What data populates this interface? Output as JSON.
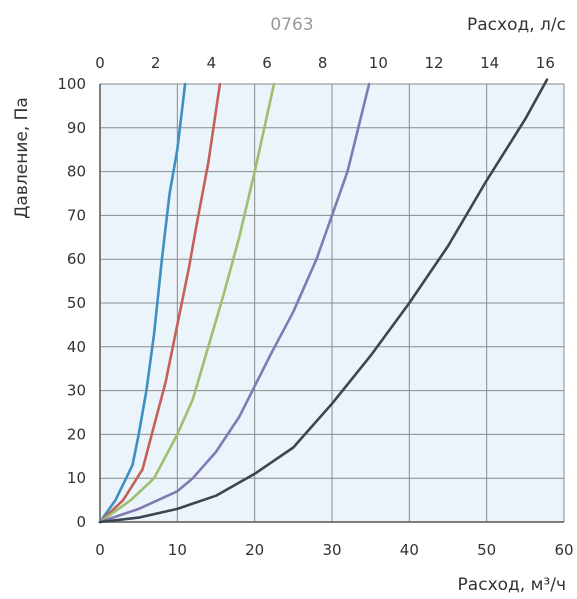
{
  "chart_data": {
    "type": "line",
    "title": "0763",
    "xlabel": "Расход, м³/ч",
    "ylabel": "Давление, Па",
    "x2label": "Расход, л/с",
    "xlim": [
      0,
      60
    ],
    "ylim": [
      0,
      100
    ],
    "x2lim": [
      0,
      16.67
    ],
    "x_ticks": [
      0,
      10,
      20,
      30,
      40,
      50,
      60
    ],
    "x2_ticks": [
      0,
      2,
      4,
      6,
      8,
      10,
      12,
      14,
      16
    ],
    "y_ticks": [
      0,
      10,
      20,
      30,
      40,
      50,
      60,
      70,
      80,
      90,
      100
    ],
    "grid": true,
    "colors": {
      "plot_bg": "#eaf4fa",
      "grid": "#8a8a8a",
      "axis": "#555555"
    },
    "series": [
      {
        "color": "#3d8fc4",
        "points": [
          [
            0,
            0
          ],
          [
            2,
            5
          ],
          [
            4.2,
            13
          ],
          [
            5,
            20
          ],
          [
            6,
            30
          ],
          [
            7,
            43
          ],
          [
            8,
            60
          ],
          [
            9,
            75
          ],
          [
            10,
            85
          ],
          [
            11,
            100
          ]
        ]
      },
      {
        "color": "#c4605a",
        "points": [
          [
            0,
            0
          ],
          [
            3,
            5
          ],
          [
            5.5,
            12
          ],
          [
            7,
            22
          ],
          [
            8.5,
            32
          ],
          [
            10,
            45
          ],
          [
            11.5,
            58
          ],
          [
            12.5,
            68
          ],
          [
            14,
            82
          ],
          [
            15.5,
            100
          ]
        ]
      },
      {
        "color": "#9dbf6e",
        "points": [
          [
            0,
            0
          ],
          [
            4,
            5
          ],
          [
            7,
            10
          ],
          [
            10,
            20
          ],
          [
            12,
            28
          ],
          [
            14,
            40
          ],
          [
            16,
            52
          ],
          [
            18,
            65
          ],
          [
            20,
            80
          ],
          [
            22.5,
            100
          ]
        ]
      },
      {
        "color": "#8379b5",
        "points": [
          [
            0,
            0
          ],
          [
            5,
            3
          ],
          [
            10,
            7
          ],
          [
            12,
            10
          ],
          [
            15,
            16
          ],
          [
            18,
            24
          ],
          [
            20,
            31
          ],
          [
            22,
            38
          ],
          [
            25,
            48
          ],
          [
            28,
            60
          ],
          [
            30,
            70
          ],
          [
            32,
            80
          ],
          [
            34.8,
            100
          ]
        ]
      },
      {
        "color": "#3c4650",
        "points": [
          [
            0,
            0
          ],
          [
            5,
            1
          ],
          [
            10,
            3
          ],
          [
            15,
            6
          ],
          [
            20,
            11
          ],
          [
            25,
            17
          ],
          [
            30,
            27
          ],
          [
            35,
            38
          ],
          [
            40,
            50
          ],
          [
            45,
            63
          ],
          [
            50,
            78
          ],
          [
            55,
            92
          ],
          [
            57.8,
            101
          ]
        ]
      }
    ]
  }
}
